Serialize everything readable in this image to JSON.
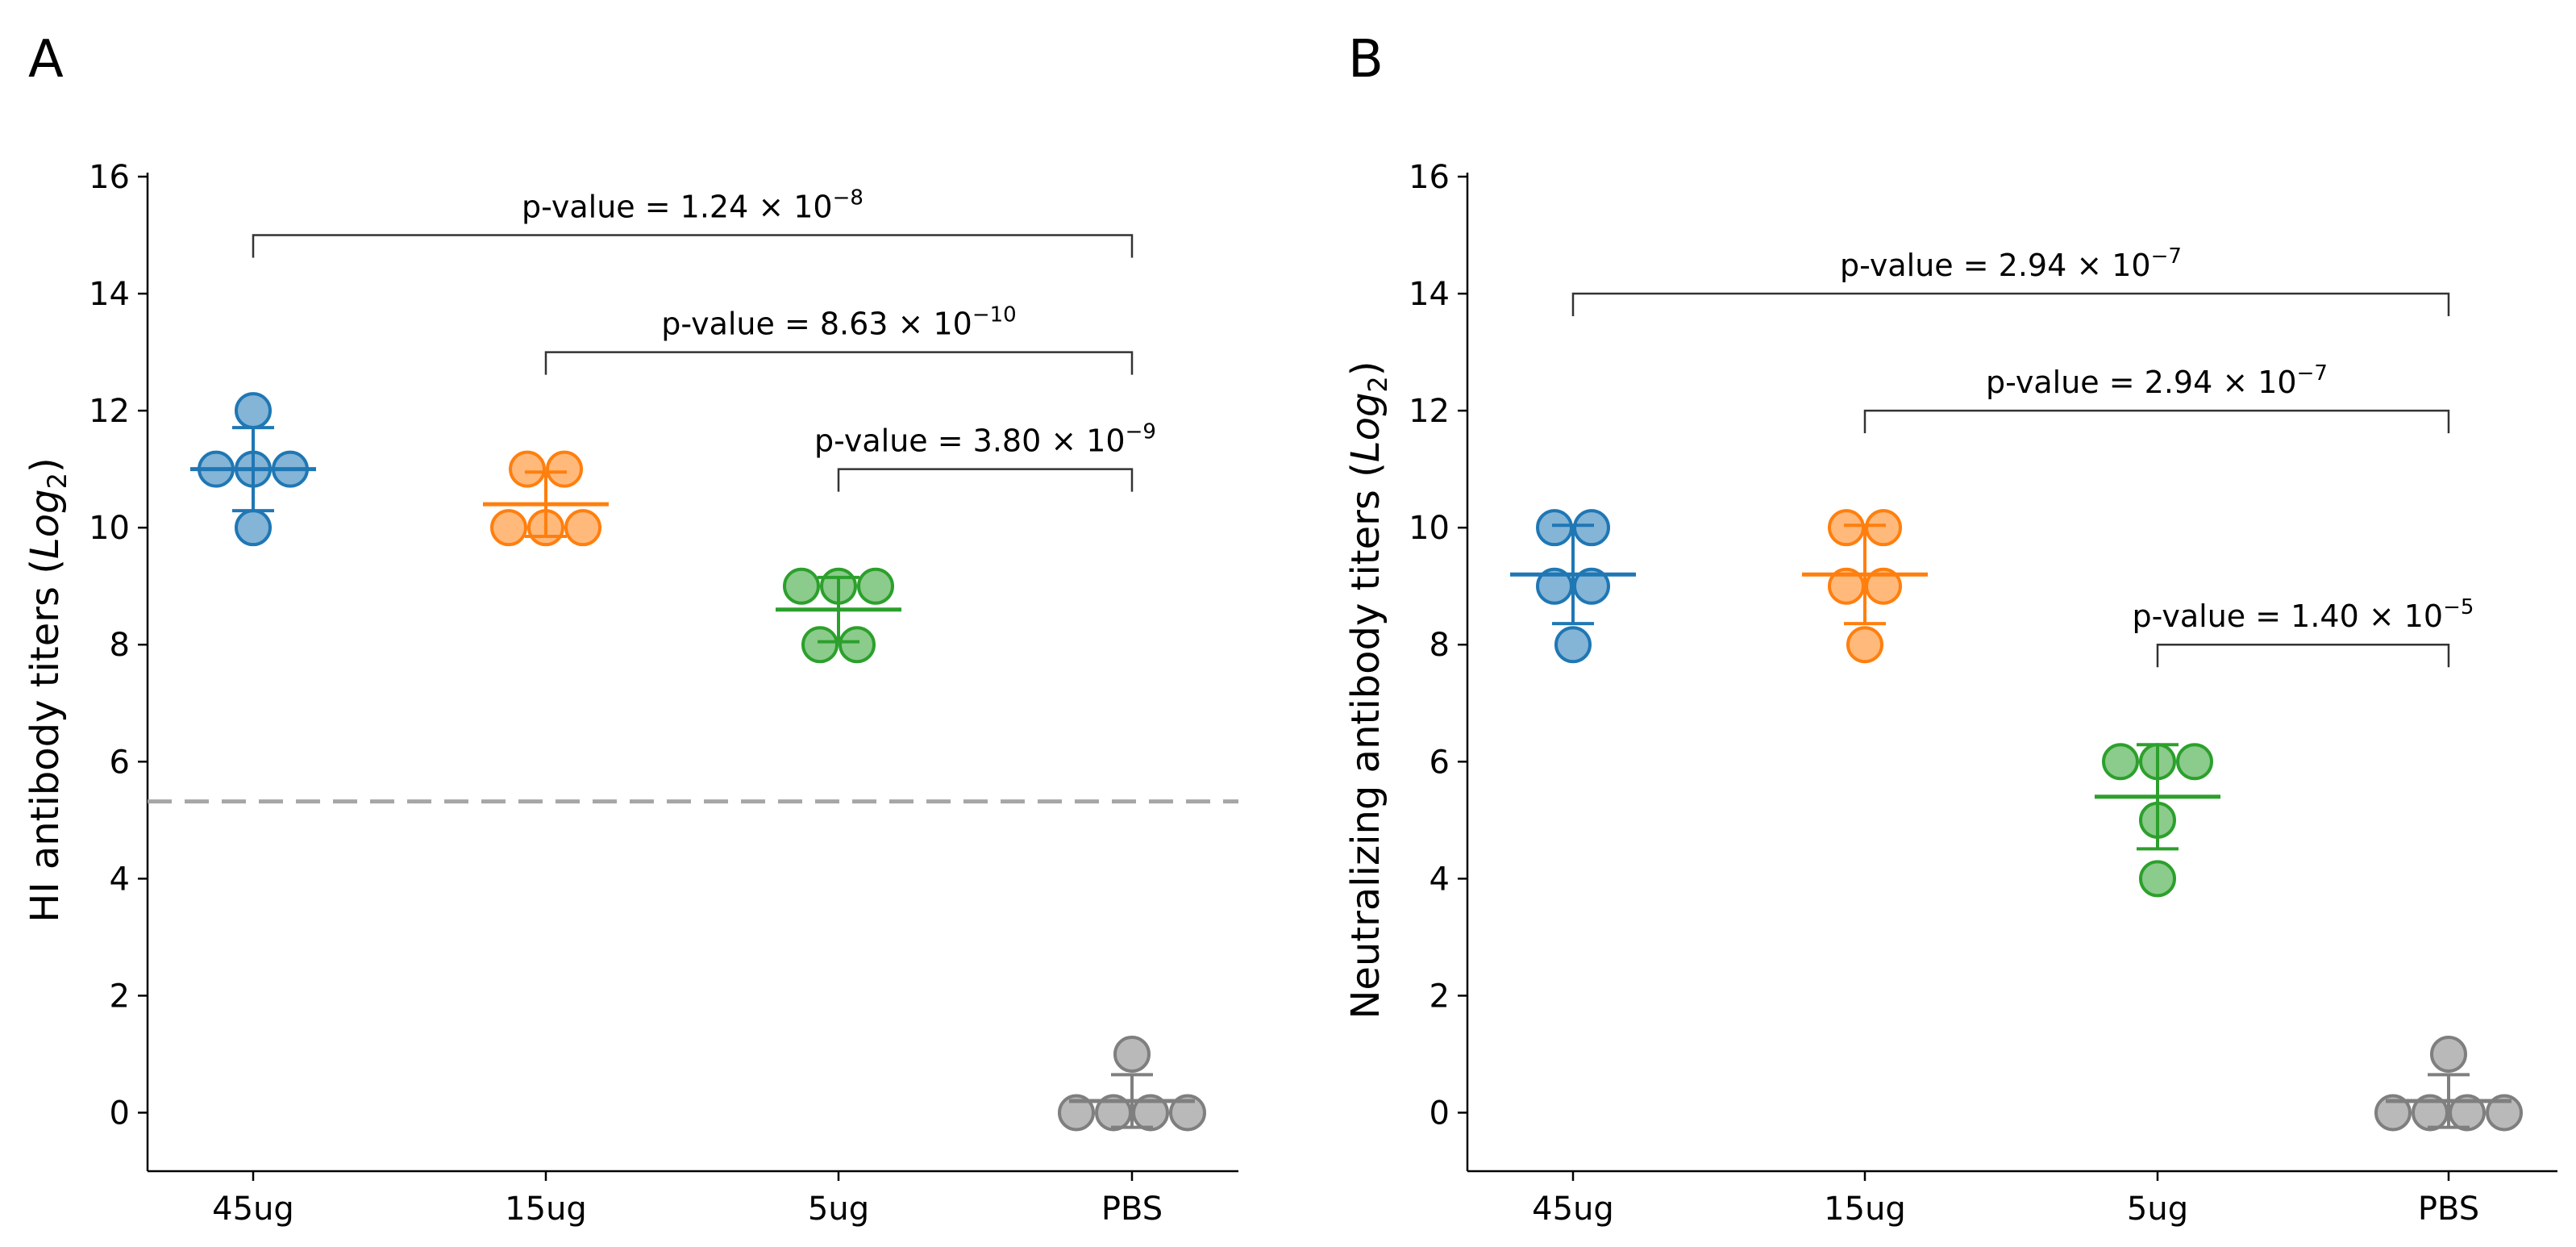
{
  "chart_data": [
    {
      "type": "scatter",
      "panel_label": "A",
      "ylabel": "HI antibody titers",
      "ylabel_term": "Log",
      "ylabel_sub": "2",
      "categories": [
        "45ug",
        "15ug",
        "5ug",
        "PBS"
      ],
      "ylim": [
        -1,
        16
      ],
      "yticks": [
        "0",
        "2",
        "4",
        "6",
        "8",
        "10",
        "12",
        "14",
        "16"
      ],
      "threshold": 5.32,
      "groups": [
        {
          "name": "45ug",
          "color": "#1f77b4",
          "points": [
            12,
            11,
            11,
            11,
            10
          ],
          "mean": 11.0,
          "sd": 0.71
        },
        {
          "name": "15ug",
          "color": "#ff7f0e",
          "points": [
            11,
            11,
            10,
            10,
            10
          ],
          "mean": 10.4,
          "sd": 0.55
        },
        {
          "name": "5ug",
          "color": "#2ca02c",
          "points": [
            9,
            9,
            9,
            8,
            8
          ],
          "mean": 8.6,
          "sd": 0.55
        },
        {
          "name": "PBS",
          "color": "#7f7f7f",
          "points": [
            1,
            0,
            0,
            0,
            0
          ],
          "mean": 0.2,
          "sd": 0.45
        }
      ],
      "comparisons": [
        {
          "from": "45ug",
          "to": "PBS",
          "y": 15.0,
          "label": "p-value = 1.24 × 10",
          "exponent": "−8"
        },
        {
          "from": "15ug",
          "to": "PBS",
          "y": 13.0,
          "label": "p-value = 8.63 × 10",
          "exponent": "−10"
        },
        {
          "from": "5ug",
          "to": "PBS",
          "y": 11.0,
          "label": "p-value = 3.80 × 10",
          "exponent": "−9"
        }
      ]
    },
    {
      "type": "scatter",
      "panel_label": "B",
      "ylabel": "Neutralizing antibody titers",
      "ylabel_term": "Log",
      "ylabel_sub": "2",
      "categories": [
        "45ug",
        "15ug",
        "5ug",
        "PBS"
      ],
      "ylim": [
        -1,
        16
      ],
      "yticks": [
        "0",
        "2",
        "4",
        "6",
        "8",
        "10",
        "12",
        "14",
        "16"
      ],
      "groups": [
        {
          "name": "45ug",
          "color": "#1f77b4",
          "points": [
            10,
            10,
            9,
            9,
            8
          ],
          "mean": 9.2,
          "sd": 0.84
        },
        {
          "name": "15ug",
          "color": "#ff7f0e",
          "points": [
            10,
            10,
            9,
            9,
            8
          ],
          "mean": 9.2,
          "sd": 0.84
        },
        {
          "name": "5ug",
          "color": "#2ca02c",
          "points": [
            6,
            6,
            6,
            5,
            4
          ],
          "mean": 5.4,
          "sd": 0.89
        },
        {
          "name": "PBS",
          "color": "#7f7f7f",
          "points": [
            1,
            0,
            0,
            0,
            0
          ],
          "mean": 0.2,
          "sd": 0.45
        }
      ],
      "comparisons": [
        {
          "from": "45ug",
          "to": "PBS",
          "y": 14.0,
          "label": "p-value = 2.94 × 10",
          "exponent": "−7"
        },
        {
          "from": "15ug",
          "to": "PBS",
          "y": 12.0,
          "label": "p-value = 2.94 × 10",
          "exponent": "−7"
        },
        {
          "from": "5ug",
          "to": "PBS",
          "y": 8.0,
          "label": "p-value = 1.40 × 10",
          "exponent": "−5"
        }
      ]
    }
  ]
}
